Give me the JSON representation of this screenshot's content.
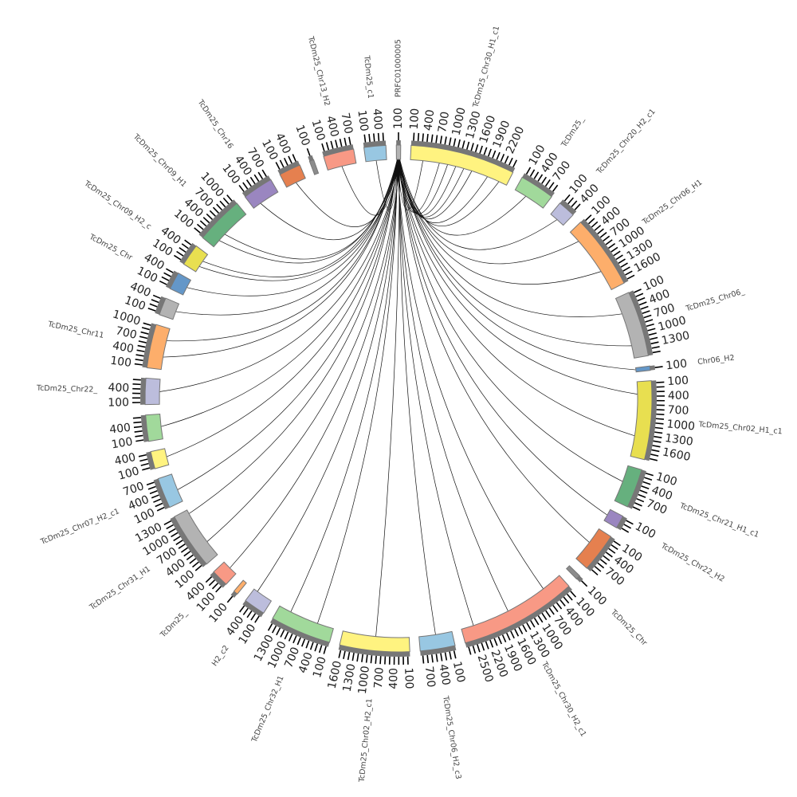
{
  "diagram": {
    "type": "circos",
    "tick_interval": 100,
    "segments": [
      {
        "name": "PRFC01000005",
        "length": 100,
        "color": "#b3b3b3"
      },
      {
        "name": "TcDm25_Chr30_H1_c1",
        "length": 2400,
        "color": "#fff380"
      },
      {
        "name": "TcDm25_",
        "length": 800,
        "color": "#a1d99b"
      },
      {
        "name": "TcDm25_Chr20_H2_c1",
        "length": 400,
        "color": "#bcbddc"
      },
      {
        "name": "TcDm25_Chr06_H1",
        "length": 1700,
        "color": "#fdae6b"
      },
      {
        "name": "TcDm25_Chr06_",
        "length": 1500,
        "color": "#b3b3b3"
      },
      {
        "name": "Chr06_H2",
        "length": 100,
        "color": "#6497c8"
      },
      {
        "name": "TcDm25_Chr02_H1_c1",
        "length": 1800,
        "color": "#e8df50"
      },
      {
        "name": "TcDm25_Chr21_H1_c1",
        "length": 900,
        "color": "#66b07e"
      },
      {
        "name": "TcDm25_Chr22_H2",
        "length": 300,
        "color": "#9a86c0"
      },
      {
        "name": "",
        "length": 900,
        "color": "#e5804f"
      },
      {
        "name": "TcDm25_Chr",
        "length": 100,
        "color": "#8c8c8c"
      },
      {
        "name": "TcDm25_Chr30_H2_c1",
        "length": 2700,
        "color": "#f89985"
      },
      {
        "name": "TcDm25_Chr06_H2_c3",
        "length": 800,
        "color": "#98c7e2"
      },
      {
        "name": "TcDm25_Chr02_H2_c1",
        "length": 1600,
        "color": "#fff380"
      },
      {
        "name": "TcDm25_Chr32_H1",
        "length": 1400,
        "color": "#a1d99b"
      },
      {
        "name": "H2_c2",
        "length": 500,
        "color": "#bcbddc"
      },
      {
        "name": "",
        "length": 100,
        "color": "#fdae6b"
      },
      {
        "name": "TcDm25_",
        "length": 400,
        "color": "#f89985"
      },
      {
        "name": "TcDm25_Chr31_H1",
        "length": 1300,
        "color": "#b3b3b3"
      },
      {
        "name": "TcDm25_Chr07_H2_c1",
        "length": 700,
        "color": "#98c7e2"
      },
      {
        "name": "",
        "length": 400,
        "color": "#fff380"
      },
      {
        "name": "",
        "length": 600,
        "color": "#a1d99b"
      },
      {
        "name": "TcDm25_Chr22_",
        "length": 600,
        "color": "#bcbddc"
      },
      {
        "name": "TcDm25_Chr11",
        "length": 1000,
        "color": "#fdae6b"
      },
      {
        "name": "",
        "length": 400,
        "color": "#b3b3b3"
      },
      {
        "name": "TcDm25_Chr",
        "length": 400,
        "color": "#6497c8"
      },
      {
        "name": "TcDm25_Chr09_H2_c",
        "length": 500,
        "color": "#e8df50"
      },
      {
        "name": "TcDm25_Chr09_H1",
        "length": 1100,
        "color": "#66b07e"
      },
      {
        "name": "TcDm25_Chr16",
        "length": 700,
        "color": "#9a86c0"
      },
      {
        "name": "",
        "length": 500,
        "color": "#e5804f"
      },
      {
        "name": "",
        "length": 100,
        "color": "#8c8c8c"
      },
      {
        "name": "TcDm25_Chr13_H2",
        "length": 700,
        "color": "#f89985"
      },
      {
        "name": "TcDm25_c1",
        "length": 500,
        "color": "#98c7e2"
      }
    ],
    "links": [
      [
        1,
        300
      ],
      [
        1,
        700
      ],
      [
        1,
        900
      ],
      [
        1,
        1100
      ],
      [
        1,
        1300
      ],
      [
        1,
        1500
      ],
      [
        1,
        1900
      ],
      [
        1,
        2200
      ],
      [
        2,
        300
      ],
      [
        3,
        200
      ],
      [
        4,
        300
      ],
      [
        4,
        1200
      ],
      [
        5,
        400
      ],
      [
        5,
        1200
      ],
      [
        6,
        50
      ],
      [
        7,
        300
      ],
      [
        7,
        1300
      ],
      [
        8,
        400
      ],
      [
        9,
        150
      ],
      [
        10,
        400
      ],
      [
        12,
        500
      ],
      [
        12,
        1500
      ],
      [
        12,
        2400
      ],
      [
        13,
        400
      ],
      [
        14,
        800
      ],
      [
        15,
        400
      ],
      [
        15,
        1100
      ],
      [
        16,
        400
      ],
      [
        18,
        200
      ],
      [
        19,
        400
      ],
      [
        19,
        1200
      ],
      [
        20,
        300
      ],
      [
        21,
        200
      ],
      [
        22,
        300
      ],
      [
        23,
        300
      ],
      [
        24,
        300
      ],
      [
        24,
        700
      ],
      [
        25,
        200
      ],
      [
        26,
        200
      ],
      [
        27,
        150
      ],
      [
        27,
        300
      ],
      [
        28,
        200
      ],
      [
        28,
        400
      ],
      [
        29,
        200
      ],
      [
        30,
        250
      ],
      [
        32,
        350
      ],
      [
        33,
        250
      ]
    ]
  }
}
